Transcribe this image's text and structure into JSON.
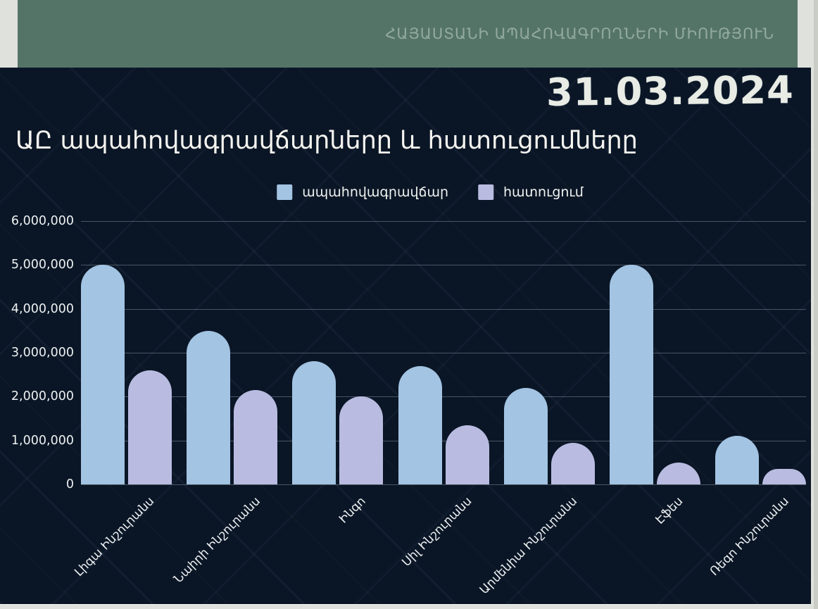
{
  "top_banner": {
    "org_name": "ՀԱՅԱՍՏԱՆԻ ԱՊԱՀՈՎԱԳՐՈՂՆԵՐԻ ՄԻՈՒԹՅՈՒՆ",
    "band_color": "#557468",
    "text_color": "#93aa9e"
  },
  "slide": {
    "date_label": "31.03.2024",
    "title": "ԱԸ ապահովագրավճարները և հատուցումները",
    "background_color": "#0a1626"
  },
  "legend": {
    "items": [
      {
        "label": "ապահովագրավճար",
        "color": "#a3c4e2"
      },
      {
        "label": "հատուցում",
        "color": "#b9bce0"
      }
    ]
  },
  "chart_data": {
    "type": "bar",
    "title": "ԱԸ ապահովագրավճարները և հատուցումները",
    "subtitle_date": "31.03.2024",
    "categories": [
      "Լիգա Ինշուրանս",
      "Նաիրի Ինշուրանս",
      "Ինգո",
      "Սիլ Ինշուրանս",
      "Արմենիա Ինշուրանս",
      "Էֆես",
      "Ռեգո Ինշուրանս"
    ],
    "series": [
      {
        "name": "ապահովագրավճար",
        "color": "#a3c4e2",
        "values": [
          5000000,
          3500000,
          2800000,
          2700000,
          2200000,
          5000000,
          1100000
        ]
      },
      {
        "name": "հատուցում",
        "color": "#b9bce0",
        "values": [
          2600000,
          2150000,
          2000000,
          1350000,
          950000,
          500000,
          350000
        ]
      }
    ],
    "ylim": [
      0,
      6000000
    ],
    "ytick_step": 1000000,
    "yticks_labels": [
      "0",
      "1,000,000",
      "2,000,000",
      "3,000,000",
      "4,000,000",
      "5,000,000",
      "6,000,000"
    ],
    "grid": "horizontal",
    "legend_position": "top-center",
    "x_label_rotation_deg": -45
  }
}
